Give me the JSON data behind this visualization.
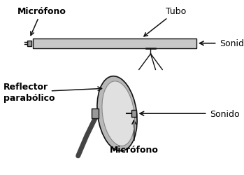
{
  "bg_color": "#ffffff",
  "text_color": "#000000",
  "label_microfono_top": "Micrófono",
  "label_tubo": "Tubo",
  "label_sonido_top": "Sonido",
  "label_reflector": "Reflector\nparabólico",
  "label_sonido_bot": "Sonido",
  "label_microfono_bot": "Micrófono",
  "fig_w": 3.49,
  "fig_h": 2.51,
  "dpi": 100
}
